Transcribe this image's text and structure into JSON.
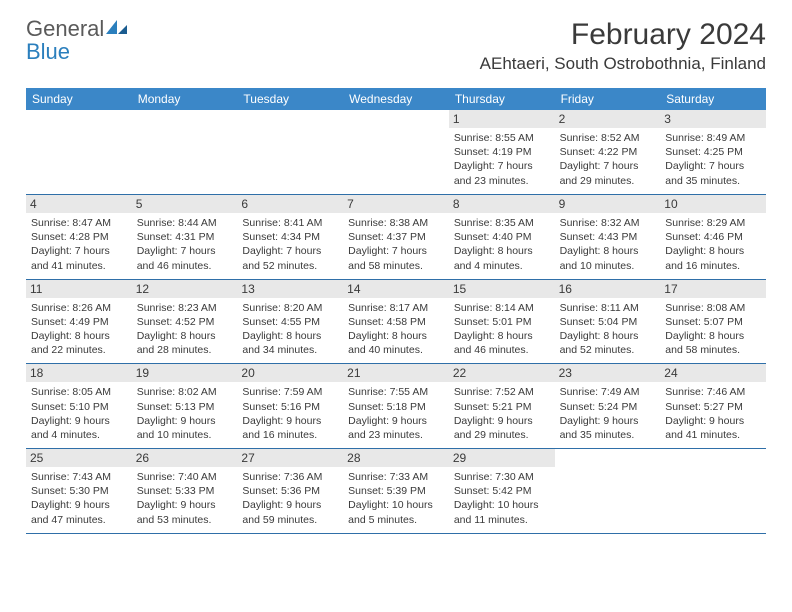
{
  "logo": {
    "general": "General",
    "blue": "Blue"
  },
  "title": "February 2024",
  "location": "AEhtaeri, South Ostrobothnia, Finland",
  "weekdays": [
    "Sunday",
    "Monday",
    "Tuesday",
    "Wednesday",
    "Thursday",
    "Friday",
    "Saturday"
  ],
  "colors": {
    "header_bg": "#3b87c8",
    "daynum_bg": "#e8e8e8",
    "border": "#2f6fa8",
    "text": "#3a3a3a",
    "logo_blue": "#2b7fbd"
  },
  "grid": {
    "rows": 5,
    "cols": 7,
    "first_weekday_index": 4,
    "days_in_month": 29
  },
  "days": [
    {
      "n": "1",
      "sunrise": "8:55 AM",
      "sunset": "4:19 PM",
      "daylight": "7 hours and 23 minutes."
    },
    {
      "n": "2",
      "sunrise": "8:52 AM",
      "sunset": "4:22 PM",
      "daylight": "7 hours and 29 minutes."
    },
    {
      "n": "3",
      "sunrise": "8:49 AM",
      "sunset": "4:25 PM",
      "daylight": "7 hours and 35 minutes."
    },
    {
      "n": "4",
      "sunrise": "8:47 AM",
      "sunset": "4:28 PM",
      "daylight": "7 hours and 41 minutes."
    },
    {
      "n": "5",
      "sunrise": "8:44 AM",
      "sunset": "4:31 PM",
      "daylight": "7 hours and 46 minutes."
    },
    {
      "n": "6",
      "sunrise": "8:41 AM",
      "sunset": "4:34 PM",
      "daylight": "7 hours and 52 minutes."
    },
    {
      "n": "7",
      "sunrise": "8:38 AM",
      "sunset": "4:37 PM",
      "daylight": "7 hours and 58 minutes."
    },
    {
      "n": "8",
      "sunrise": "8:35 AM",
      "sunset": "4:40 PM",
      "daylight": "8 hours and 4 minutes."
    },
    {
      "n": "9",
      "sunrise": "8:32 AM",
      "sunset": "4:43 PM",
      "daylight": "8 hours and 10 minutes."
    },
    {
      "n": "10",
      "sunrise": "8:29 AM",
      "sunset": "4:46 PM",
      "daylight": "8 hours and 16 minutes."
    },
    {
      "n": "11",
      "sunrise": "8:26 AM",
      "sunset": "4:49 PM",
      "daylight": "8 hours and 22 minutes."
    },
    {
      "n": "12",
      "sunrise": "8:23 AM",
      "sunset": "4:52 PM",
      "daylight": "8 hours and 28 minutes."
    },
    {
      "n": "13",
      "sunrise": "8:20 AM",
      "sunset": "4:55 PM",
      "daylight": "8 hours and 34 minutes."
    },
    {
      "n": "14",
      "sunrise": "8:17 AM",
      "sunset": "4:58 PM",
      "daylight": "8 hours and 40 minutes."
    },
    {
      "n": "15",
      "sunrise": "8:14 AM",
      "sunset": "5:01 PM",
      "daylight": "8 hours and 46 minutes."
    },
    {
      "n": "16",
      "sunrise": "8:11 AM",
      "sunset": "5:04 PM",
      "daylight": "8 hours and 52 minutes."
    },
    {
      "n": "17",
      "sunrise": "8:08 AM",
      "sunset": "5:07 PM",
      "daylight": "8 hours and 58 minutes."
    },
    {
      "n": "18",
      "sunrise": "8:05 AM",
      "sunset": "5:10 PM",
      "daylight": "9 hours and 4 minutes."
    },
    {
      "n": "19",
      "sunrise": "8:02 AM",
      "sunset": "5:13 PM",
      "daylight": "9 hours and 10 minutes."
    },
    {
      "n": "20",
      "sunrise": "7:59 AM",
      "sunset": "5:16 PM",
      "daylight": "9 hours and 16 minutes."
    },
    {
      "n": "21",
      "sunrise": "7:55 AM",
      "sunset": "5:18 PM",
      "daylight": "9 hours and 23 minutes."
    },
    {
      "n": "22",
      "sunrise": "7:52 AM",
      "sunset": "5:21 PM",
      "daylight": "9 hours and 29 minutes."
    },
    {
      "n": "23",
      "sunrise": "7:49 AM",
      "sunset": "5:24 PM",
      "daylight": "9 hours and 35 minutes."
    },
    {
      "n": "24",
      "sunrise": "7:46 AM",
      "sunset": "5:27 PM",
      "daylight": "9 hours and 41 minutes."
    },
    {
      "n": "25",
      "sunrise": "7:43 AM",
      "sunset": "5:30 PM",
      "daylight": "9 hours and 47 minutes."
    },
    {
      "n": "26",
      "sunrise": "7:40 AM",
      "sunset": "5:33 PM",
      "daylight": "9 hours and 53 minutes."
    },
    {
      "n": "27",
      "sunrise": "7:36 AM",
      "sunset": "5:36 PM",
      "daylight": "9 hours and 59 minutes."
    },
    {
      "n": "28",
      "sunrise": "7:33 AM",
      "sunset": "5:39 PM",
      "daylight": "10 hours and 5 minutes."
    },
    {
      "n": "29",
      "sunrise": "7:30 AM",
      "sunset": "5:42 PM",
      "daylight": "10 hours and 11 minutes."
    }
  ],
  "labels": {
    "sunrise": "Sunrise: ",
    "sunset": "Sunset: ",
    "daylight": "Daylight: "
  }
}
